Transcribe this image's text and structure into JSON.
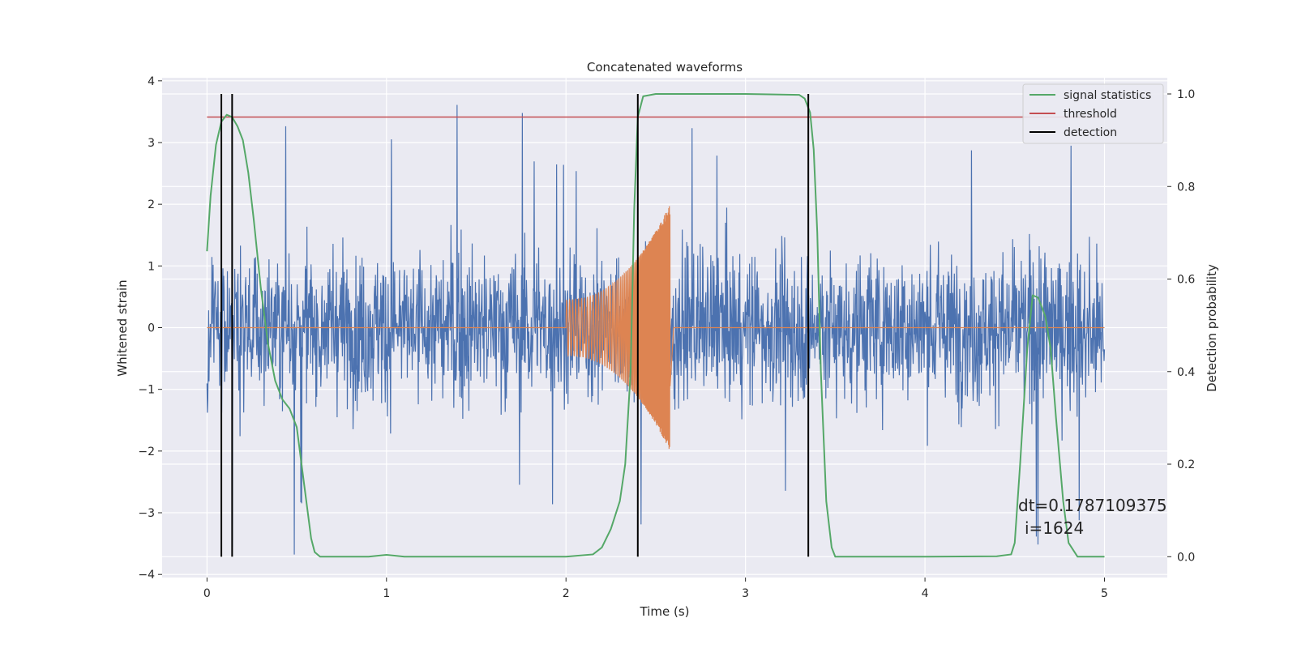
{
  "chart_data": {
    "type": "line",
    "title": "Concatenated waveforms",
    "xlabel": "Time (s)",
    "ylabel_left": "Whitened strain",
    "ylabel_right": "Detection probability",
    "xlim": [
      -0.25,
      5.35
    ],
    "ylim_left": [
      -4.05,
      4.05
    ],
    "ylim_right": [
      -0.045,
      1.035
    ],
    "x_ticks": [
      0,
      1,
      2,
      3,
      4,
      5
    ],
    "x_tick_labels": [
      "0",
      "1",
      "2",
      "3",
      "4",
      "5"
    ],
    "y_left_ticks": [
      -4,
      -3,
      -2,
      -1,
      0,
      1,
      2,
      3,
      4
    ],
    "y_left_tick_labels": [
      "−4",
      "−3",
      "−2",
      "−1",
      "0",
      "1",
      "2",
      "3",
      "4"
    ],
    "y_right_ticks": [
      0,
      0.2,
      0.4,
      0.6,
      0.8,
      1.0
    ],
    "y_right_tick_labels": [
      "0.0",
      "0.2",
      "0.4",
      "0.6",
      "0.8",
      "1.0"
    ],
    "grid": true,
    "legend_placement": "top-right",
    "colors": {
      "noise": "#4c72b0",
      "waveform": "#dd8452",
      "signal_statistics": "#55a868",
      "threshold": "#c44e52",
      "detection": "#000000",
      "background": "#eaeaf2"
    },
    "series": [
      {
        "name": "",
        "axis": "left",
        "description_kind": "noise",
        "x_range": [
          0,
          5
        ],
        "amplitude_typical": 1.2,
        "amplitude_peak": 3.7
      },
      {
        "name": "",
        "axis": "left",
        "description_kind": "chirp",
        "x_range": [
          2.0,
          2.58
        ],
        "amplitude_start": 0.45,
        "amplitude_end": 2.0
      },
      {
        "name": "signal statistics",
        "axis": "right",
        "x": [
          0,
          0.02,
          0.05,
          0.08,
          0.11,
          0.14,
          0.17,
          0.2,
          0.23,
          0.26,
          0.3,
          0.34,
          0.38,
          0.42,
          0.46,
          0.5,
          0.52,
          0.55,
          0.58,
          0.6,
          0.63,
          0.7,
          0.9,
          1.0,
          1.1,
          1.5,
          2.0,
          2.15,
          2.2,
          2.25,
          2.3,
          2.33,
          2.36,
          2.38,
          2.4,
          2.43,
          2.5,
          2.6,
          3.0,
          3.3,
          3.33,
          3.36,
          3.38,
          3.4,
          3.42,
          3.45,
          3.48,
          3.5,
          3.6,
          4.0,
          4.4,
          4.48,
          4.5,
          4.53,
          4.57,
          4.6,
          4.63,
          4.67,
          4.7,
          4.73,
          4.77,
          4.8,
          4.85,
          5.0
        ],
        "y": [
          0.66,
          0.78,
          0.89,
          0.94,
          0.955,
          0.95,
          0.93,
          0.9,
          0.83,
          0.73,
          0.58,
          0.46,
          0.38,
          0.34,
          0.32,
          0.28,
          0.22,
          0.13,
          0.04,
          0.01,
          0.0,
          0.0,
          0.0,
          0.004,
          0.0,
          0.0,
          0.0,
          0.005,
          0.02,
          0.06,
          0.12,
          0.2,
          0.4,
          0.75,
          0.95,
          0.995,
          1.0,
          1.0,
          1.0,
          0.998,
          0.99,
          0.96,
          0.88,
          0.7,
          0.4,
          0.12,
          0.02,
          0.0,
          0.0,
          0.0,
          0.001,
          0.005,
          0.03,
          0.2,
          0.45,
          0.565,
          0.56,
          0.52,
          0.45,
          0.3,
          0.12,
          0.03,
          0.0,
          0.0
        ]
      },
      {
        "name": "threshold",
        "axis": "right",
        "x": [
          0,
          5
        ],
        "y": [
          0.95,
          0.95
        ]
      },
      {
        "name": "detection",
        "axis": "right",
        "x": [
          0.08,
          0.14,
          2.4,
          3.35
        ],
        "y_range": [
          0.0,
          1.0
        ]
      }
    ],
    "annotation_lines": [
      "dt=0.1787109375",
      "i=1624"
    ]
  }
}
